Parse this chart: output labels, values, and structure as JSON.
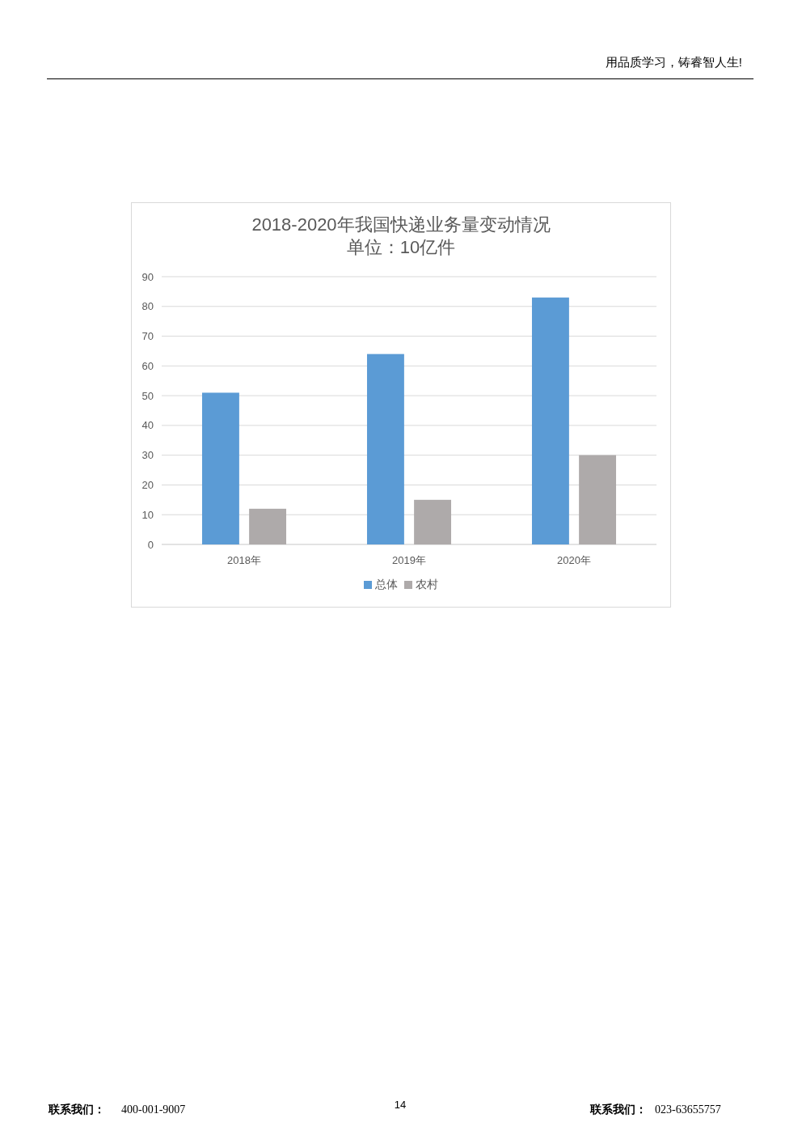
{
  "chart_data": {
    "type": "bar",
    "title": "2018-2020年我国快递业务量变动情况",
    "subtitle": "单位：10亿件",
    "categories": [
      "2018年",
      "2019年",
      "2020年"
    ],
    "series": [
      {
        "name": "总体",
        "color": "#5b9bd5",
        "values": [
          51,
          64,
          83
        ]
      },
      {
        "name": "农村",
        "color": "#aeaaaa",
        "values": [
          12,
          15,
          30
        ]
      }
    ],
    "ylim": [
      0,
      90
    ],
    "yticks": [
      0,
      10,
      20,
      30,
      40,
      50,
      60,
      70,
      80,
      90
    ],
    "grid": "y",
    "legend": "bottom",
    "annotations": [
      "用品质学习，铸睿智人生!",
      "联系我们：",
      "400-001-9007",
      "14",
      "联系我们：",
      "023-63655757"
    ]
  }
}
